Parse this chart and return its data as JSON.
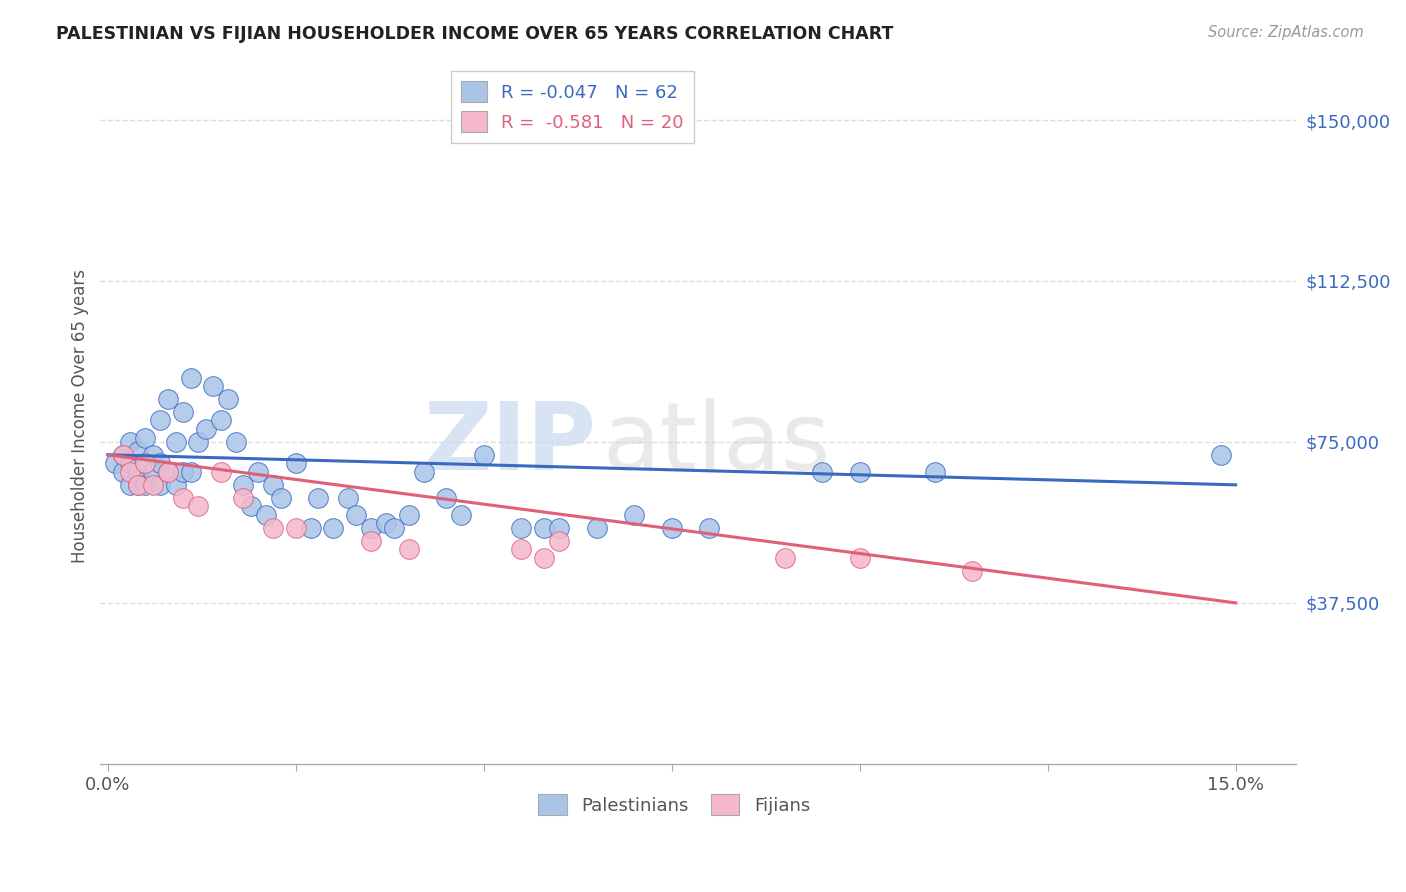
{
  "title": "PALESTINIAN VS FIJIAN HOUSEHOLDER INCOME OVER 65 YEARS CORRELATION CHART",
  "source": "Source: ZipAtlas.com",
  "ylabel": "Householder Income Over 65 years",
  "ytick_values": [
    37500,
    75000,
    112500,
    150000
  ],
  "ylim": [
    0,
    162000
  ],
  "xlim": [
    -0.001,
    0.158
  ],
  "pal_color": "#aac4e8",
  "fij_color": "#f5b8cc",
  "pal_line_color": "#3a6abf",
  "fij_line_color": "#e0607a",
  "pal_R": -0.047,
  "fij_R": -0.581,
  "legend_1": "R = -0.047   N = 62",
  "legend_2": "R =  -0.581   N = 20",
  "watermark_zip": "ZIP",
  "watermark_atlas": "atlas",
  "background_color": "#ffffff",
  "grid_color": "#dddddd",
  "pal_line_y0": 72000,
  "pal_line_y1": 65000,
  "fij_line_y0": 72000,
  "fij_line_y1": 37500,
  "palestinian_x": [
    0.001,
    0.002,
    0.002,
    0.003,
    0.003,
    0.003,
    0.004,
    0.004,
    0.004,
    0.005,
    0.005,
    0.005,
    0.006,
    0.006,
    0.007,
    0.007,
    0.007,
    0.008,
    0.008,
    0.009,
    0.009,
    0.01,
    0.01,
    0.011,
    0.011,
    0.012,
    0.013,
    0.014,
    0.015,
    0.016,
    0.017,
    0.018,
    0.019,
    0.02,
    0.021,
    0.022,
    0.023,
    0.025,
    0.027,
    0.028,
    0.03,
    0.032,
    0.033,
    0.035,
    0.037,
    0.038,
    0.04,
    0.042,
    0.045,
    0.047,
    0.05,
    0.055,
    0.058,
    0.06,
    0.065,
    0.07,
    0.075,
    0.08,
    0.095,
    0.1,
    0.11,
    0.148
  ],
  "palestinian_y": [
    70000,
    72000,
    68000,
    75000,
    65000,
    70000,
    73000,
    68000,
    65000,
    76000,
    70000,
    65000,
    72000,
    68000,
    80000,
    70000,
    65000,
    85000,
    68000,
    75000,
    65000,
    82000,
    68000,
    90000,
    68000,
    75000,
    78000,
    88000,
    80000,
    85000,
    75000,
    65000,
    60000,
    68000,
    58000,
    65000,
    62000,
    70000,
    55000,
    62000,
    55000,
    62000,
    58000,
    55000,
    56000,
    55000,
    58000,
    68000,
    62000,
    58000,
    72000,
    55000,
    55000,
    55000,
    55000,
    58000,
    55000,
    55000,
    68000,
    68000,
    68000,
    72000
  ],
  "fijian_x": [
    0.002,
    0.003,
    0.004,
    0.005,
    0.006,
    0.008,
    0.01,
    0.012,
    0.015,
    0.018,
    0.022,
    0.025,
    0.035,
    0.04,
    0.055,
    0.058,
    0.06,
    0.09,
    0.1,
    0.115
  ],
  "fijian_y": [
    72000,
    68000,
    65000,
    70000,
    65000,
    68000,
    62000,
    60000,
    68000,
    62000,
    55000,
    55000,
    52000,
    50000,
    50000,
    48000,
    52000,
    48000,
    48000,
    45000
  ]
}
